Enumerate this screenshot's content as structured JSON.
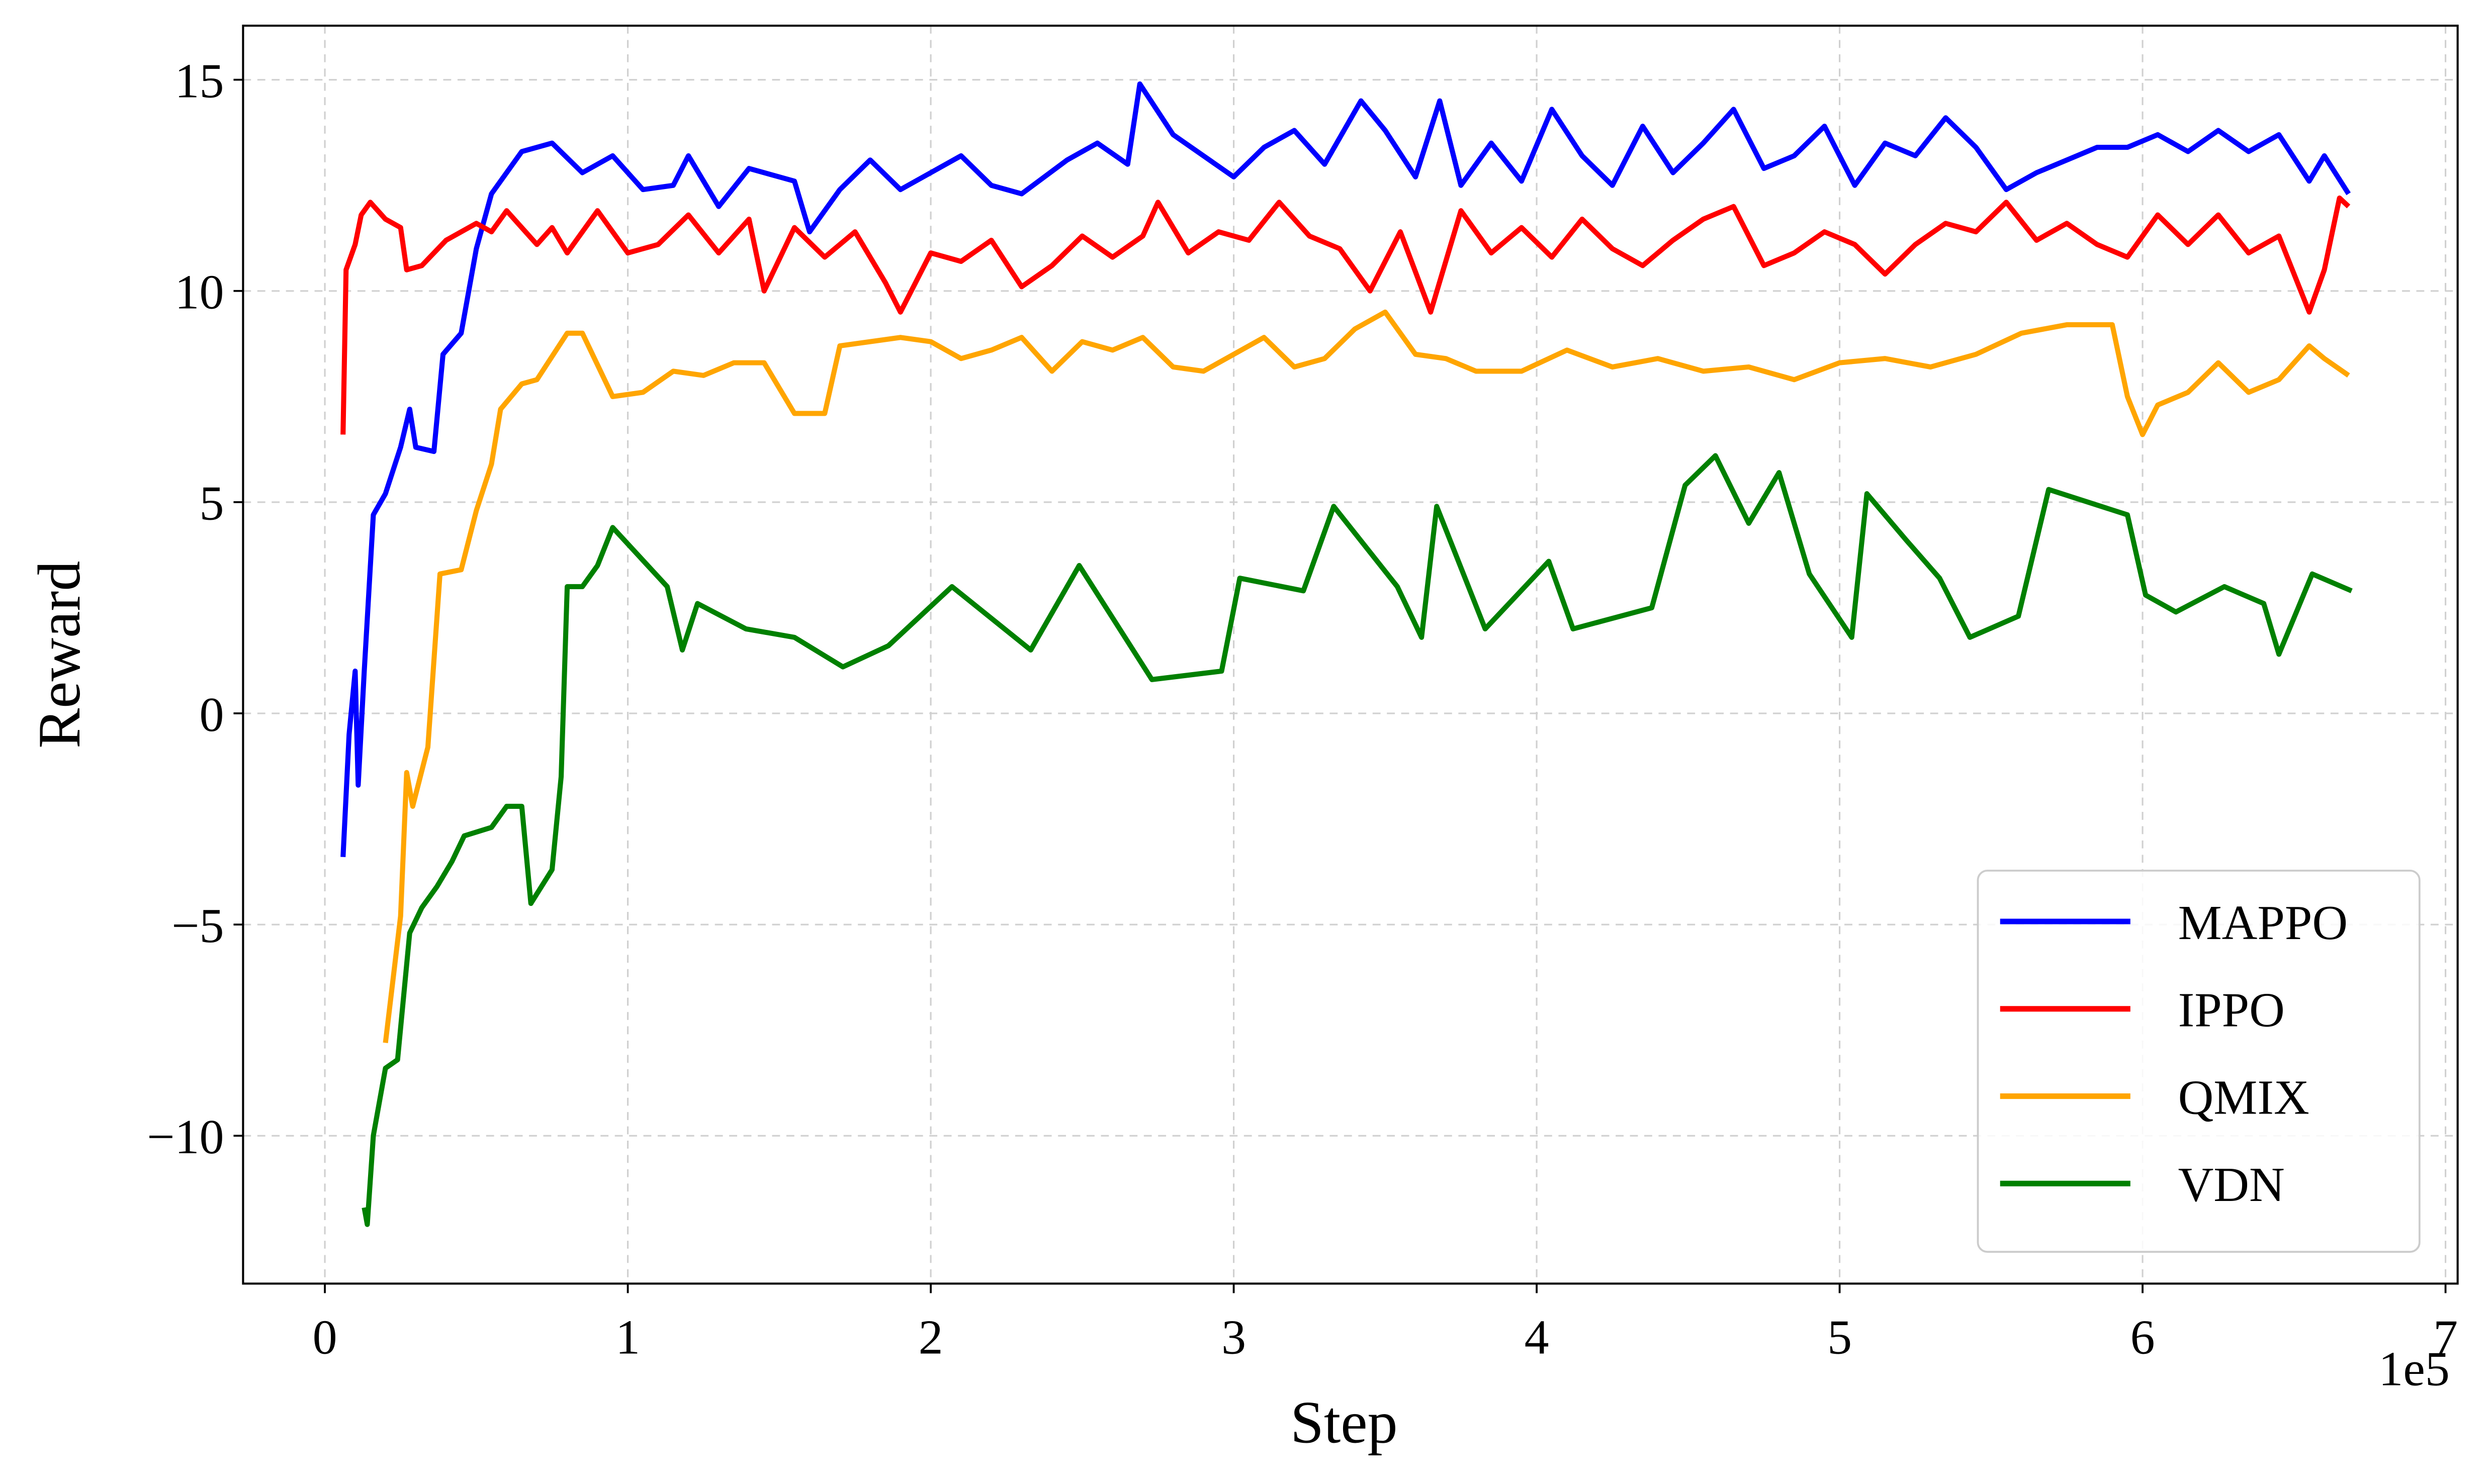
{
  "chart_data": {
    "type": "line",
    "xlabel": "Step",
    "ylabel": "Reward",
    "x_offset_text": "1e5",
    "xlim": [
      -0.27,
      7.04
    ],
    "ylim": [
      -13.5,
      16.28
    ],
    "xticks": [
      0,
      1,
      2,
      3,
      4,
      5,
      6,
      7
    ],
    "yticks": [
      {
        "value": -10,
        "label": "−10"
      },
      {
        "value": -5,
        "label": "−5"
      },
      0,
      5,
      10,
      15
    ],
    "grid": true,
    "legend": "lower right",
    "series": [
      {
        "name": "MAPPO",
        "color": "#0000ff",
        "x": [
          0.06,
          0.08,
          0.1,
          0.11,
          0.13,
          0.16,
          0.2,
          0.25,
          0.28,
          0.3,
          0.36,
          0.39,
          0.45,
          0.5,
          0.55,
          0.65,
          0.75,
          0.85,
          0.95,
          1.05,
          1.15,
          1.2,
          1.3,
          1.4,
          1.55,
          1.6,
          1.7,
          1.8,
          1.9,
          2.0,
          2.1,
          2.2,
          2.3,
          2.45,
          2.55,
          2.65,
          2.69,
          2.8,
          2.9,
          3.0,
          3.1,
          3.2,
          3.3,
          3.42,
          3.5,
          3.6,
          3.68,
          3.75,
          3.85,
          3.95,
          4.05,
          4.15,
          4.25,
          4.35,
          4.45,
          4.55,
          4.65,
          4.75,
          4.85,
          4.95,
          5.05,
          5.15,
          5.25,
          5.35,
          5.45,
          5.55,
          5.65,
          5.75,
          5.85,
          5.95,
          6.05,
          6.15,
          6.25,
          6.35,
          6.45,
          6.55,
          6.6,
          6.68
        ],
        "values": [
          -3.4,
          -0.5,
          1,
          -1.7,
          1,
          4.7,
          5.2,
          6.3,
          7.2,
          6.3,
          6.2,
          8.5,
          9,
          11,
          12.3,
          13.3,
          13.5,
          12.8,
          13.2,
          12.4,
          12.5,
          13.2,
          12,
          12.9,
          12.6,
          11.4,
          12.4,
          13.1,
          12.4,
          12.8,
          13.2,
          12.5,
          12.3,
          13.1,
          13.5,
          13,
          14.9,
          13.7,
          13.2,
          12.7,
          13.4,
          13.8,
          13,
          14.5,
          13.8,
          12.7,
          14.5,
          12.5,
          13.5,
          12.6,
          14.3,
          13.2,
          12.5,
          13.9,
          12.8,
          13.5,
          14.3,
          12.9,
          13.2,
          13.9,
          12.5,
          13.5,
          13.2,
          14.1,
          13.4,
          12.4,
          12.8,
          13.1,
          13.4,
          13.4,
          13.7,
          13.3,
          13.8,
          13.3,
          13.7,
          12.6,
          13.2,
          12.3
        ]
      },
      {
        "name": "IPPO",
        "color": "#ff0000",
        "x": [
          0.06,
          0.07,
          0.1,
          0.12,
          0.15,
          0.2,
          0.25,
          0.27,
          0.32,
          0.4,
          0.5,
          0.55,
          0.6,
          0.7,
          0.75,
          0.8,
          0.9,
          1.0,
          1.1,
          1.2,
          1.3,
          1.4,
          1.45,
          1.55,
          1.65,
          1.75,
          1.85,
          1.9,
          2.0,
          2.1,
          2.2,
          2.3,
          2.4,
          2.5,
          2.6,
          2.7,
          2.75,
          2.85,
          2.95,
          3.05,
          3.15,
          3.25,
          3.35,
          3.45,
          3.55,
          3.65,
          3.75,
          3.85,
          3.95,
          4.05,
          4.15,
          4.25,
          4.35,
          4.45,
          4.55,
          4.65,
          4.75,
          4.85,
          4.95,
          5.05,
          5.15,
          5.25,
          5.35,
          5.45,
          5.55,
          5.65,
          5.75,
          5.85,
          5.95,
          6.05,
          6.15,
          6.25,
          6.35,
          6.45,
          6.55,
          6.6,
          6.65,
          6.68
        ],
        "values": [
          6.6,
          10.5,
          11.1,
          11.8,
          12.1,
          11.7,
          11.5,
          10.5,
          10.6,
          11.2,
          11.6,
          11.4,
          11.9,
          11.1,
          11.5,
          10.9,
          11.9,
          10.9,
          11.1,
          11.8,
          10.9,
          11.7,
          10,
          11.5,
          10.8,
          11.4,
          10.2,
          9.5,
          10.9,
          10.7,
          11.2,
          10.1,
          10.6,
          11.3,
          10.8,
          11.3,
          12.1,
          10.9,
          11.4,
          11.2,
          12.1,
          11.3,
          11,
          10,
          11.4,
          9.5,
          11.9,
          10.9,
          11.5,
          10.8,
          11.7,
          11,
          10.6,
          11.2,
          11.7,
          12,
          10.6,
          10.9,
          11.4,
          11.1,
          10.4,
          11.1,
          11.6,
          11.4,
          12.1,
          11.2,
          11.6,
          11.1,
          10.8,
          11.8,
          11.1,
          11.8,
          10.9,
          11.3,
          9.5,
          10.5,
          12.2,
          12
        ]
      },
      {
        "name": "QMIX",
        "color": "#ffa500",
        "x": [
          0.2,
          0.25,
          0.27,
          0.29,
          0.34,
          0.38,
          0.45,
          0.5,
          0.55,
          0.58,
          0.65,
          0.7,
          0.8,
          0.85,
          0.95,
          1.05,
          1.15,
          1.25,
          1.35,
          1.45,
          1.55,
          1.65,
          1.7,
          1.8,
          1.9,
          2.0,
          2.1,
          2.2,
          2.3,
          2.4,
          2.5,
          2.6,
          2.7,
          2.8,
          2.9,
          3.0,
          3.1,
          3.2,
          3.3,
          3.4,
          3.5,
          3.6,
          3.7,
          3.8,
          3.95,
          4.1,
          4.25,
          4.4,
          4.55,
          4.7,
          4.85,
          5.0,
          5.15,
          5.3,
          5.45,
          5.6,
          5.75,
          5.9,
          5.95,
          6.0,
          6.05,
          6.15,
          6.25,
          6.35,
          6.45,
          6.55,
          6.6,
          6.68
        ],
        "values": [
          -7.8,
          -4.8,
          -1.4,
          -2.2,
          -0.8,
          3.3,
          3.4,
          4.8,
          5.9,
          7.2,
          7.8,
          7.9,
          9,
          9,
          7.5,
          7.6,
          8.1,
          8,
          8.3,
          8.3,
          7.1,
          7.1,
          8.7,
          8.8,
          8.9,
          8.8,
          8.4,
          8.6,
          8.9,
          8.1,
          8.8,
          8.6,
          8.9,
          8.2,
          8.1,
          8.5,
          8.9,
          8.2,
          8.4,
          9.1,
          9.5,
          8.5,
          8.4,
          8.1,
          8.1,
          8.6,
          8.2,
          8.4,
          8.1,
          8.2,
          7.9,
          8.3,
          8.4,
          8.2,
          8.5,
          9,
          9.2,
          9.2,
          7.5,
          6.6,
          7.3,
          7.6,
          8.3,
          7.6,
          7.9,
          8.7,
          8.4,
          8
        ]
      },
      {
        "name": "VDN",
        "color": "#008000",
        "x": [
          0.13,
          0.14,
          0.16,
          0.2,
          0.24,
          0.28,
          0.32,
          0.37,
          0.42,
          0.46,
          0.55,
          0.6,
          0.65,
          0.68,
          0.75,
          0.78,
          0.8,
          0.85,
          0.9,
          0.95,
          1.13,
          1.18,
          1.23,
          1.39,
          1.55,
          1.71,
          1.86,
          2.07,
          2.33,
          2.49,
          2.73,
          2.96,
          3.02,
          3.23,
          3.33,
          3.54,
          3.62,
          3.67,
          3.83,
          4.04,
          4.12,
          4.38,
          4.49,
          4.59,
          4.7,
          4.8,
          4.9,
          5.04,
          5.09,
          5.22,
          5.33,
          5.43,
          5.59,
          5.69,
          5.95,
          6.01,
          6.11,
          6.27,
          6.4,
          6.45,
          6.56,
          6.69
        ],
        "values": [
          -11.7,
          -12.1,
          -10,
          -8.4,
          -8.2,
          -5.2,
          -4.6,
          -4.1,
          -3.5,
          -2.9,
          -2.7,
          -2.2,
          -2.2,
          -4.5,
          -3.7,
          -1.5,
          3,
          3,
          3.5,
          4.4,
          3,
          1.5,
          2.6,
          2,
          1.8,
          1.1,
          1.6,
          3,
          1.5,
          3.5,
          0.8,
          1,
          3.2,
          2.9,
          4.9,
          3,
          1.8,
          4.9,
          2,
          3.6,
          2,
          2.5,
          5.4,
          6.1,
          4.5,
          5.7,
          3.3,
          1.8,
          5.2,
          4.1,
          3.2,
          1.8,
          2.3,
          5.3,
          4.7,
          2.8,
          2.4,
          3,
          2.6,
          1.4,
          3.3,
          2.9
        ]
      }
    ]
  }
}
